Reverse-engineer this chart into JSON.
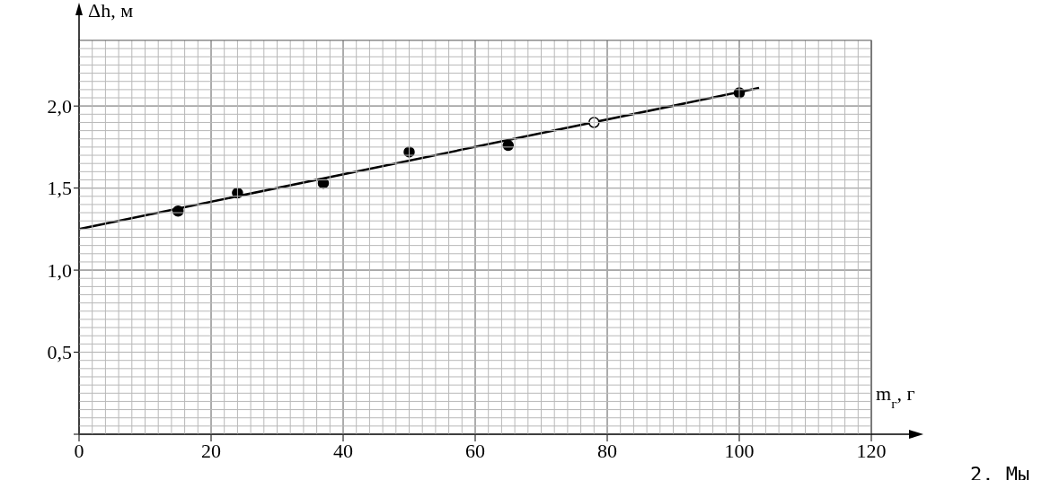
{
  "chart_data": {
    "type": "scatter",
    "xlabel": "m$_{г}$, г",
    "ylabel": "Δh, м",
    "xlim": [
      0,
      120
    ],
    "ylim": [
      0,
      2.4
    ],
    "xticks": [
      0,
      20,
      40,
      60,
      80,
      100,
      120
    ],
    "yticks": [
      {
        "value": 0,
        "label": null
      },
      {
        "value": 0.5,
        "label": "0,5"
      },
      {
        "value": 1,
        "label": "1,0"
      },
      {
        "value": 1.5,
        "label": "1,5"
      },
      {
        "value": 2,
        "label": "2,0"
      }
    ],
    "grid": true,
    "legend": false,
    "series": [
      {
        "x": [
          15,
          24,
          37,
          50,
          65,
          78,
          100
        ],
        "values": [
          1.36,
          1.47,
          1.53,
          1.72,
          1.76,
          1.9,
          2.08
        ],
        "colors": [
          "#000000",
          "#000000",
          "#000000",
          "#000000",
          "#000000",
          "#ffffff",
          "#000000"
        ],
        "color": "#000000",
        "marker": "circle"
      },
      {
        "type": "line",
        "x": [
          0,
          103
        ],
        "values": [
          1.25,
          2.11
        ],
        "color": "#000000",
        "line_style": "solid",
        "marker": "none"
      }
    ],
    "annotations": [
      "2. Мы"
    ]
  }
}
